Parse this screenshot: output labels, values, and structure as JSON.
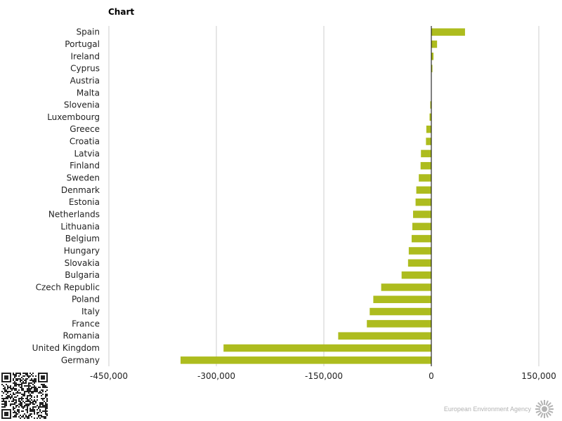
{
  "title": "Chart",
  "chart_data": {
    "type": "bar",
    "orientation": "horizontal",
    "title": "Chart",
    "categories": [
      "Spain",
      "Portugal",
      "Ireland",
      "Cyprus",
      "Austria",
      "Malta",
      "Slovenia",
      "Luxembourg",
      "Greece",
      "Croatia",
      "Latvia",
      "Finland",
      "Sweden",
      "Denmark",
      "Estonia",
      "Netherlands",
      "Lithuania",
      "Belgium",
      "Hungary",
      "Slovakia",
      "Bulgaria",
      "Czech Republic",
      "Poland",
      "Italy",
      "France",
      "Romania",
      "United Kingdom",
      "Germany"
    ],
    "values": [
      47000,
      8000,
      3000,
      1500,
      0,
      0,
      -1500,
      -2500,
      -7000,
      -7500,
      -14500,
      -15000,
      -17500,
      -21000,
      -22000,
      -25500,
      -26500,
      -27500,
      -31500,
      -32500,
      -41500,
      -70000,
      -81000,
      -86000,
      -90000,
      -130000,
      -290000,
      -350000
    ],
    "xlim": [
      -450000,
      150000
    ],
    "xticks": [
      -450000,
      -300000,
      -150000,
      0,
      150000
    ],
    "xtick_labels": [
      "-450,000",
      "-300,000",
      "-150,000",
      "0",
      "150,000"
    ],
    "grid": true,
    "bar_color": "#adbc1e",
    "xlabel": "",
    "ylabel": ""
  },
  "footer": {
    "logo_text": "European Environment Agency",
    "logo_color": "#b3b3b3"
  }
}
